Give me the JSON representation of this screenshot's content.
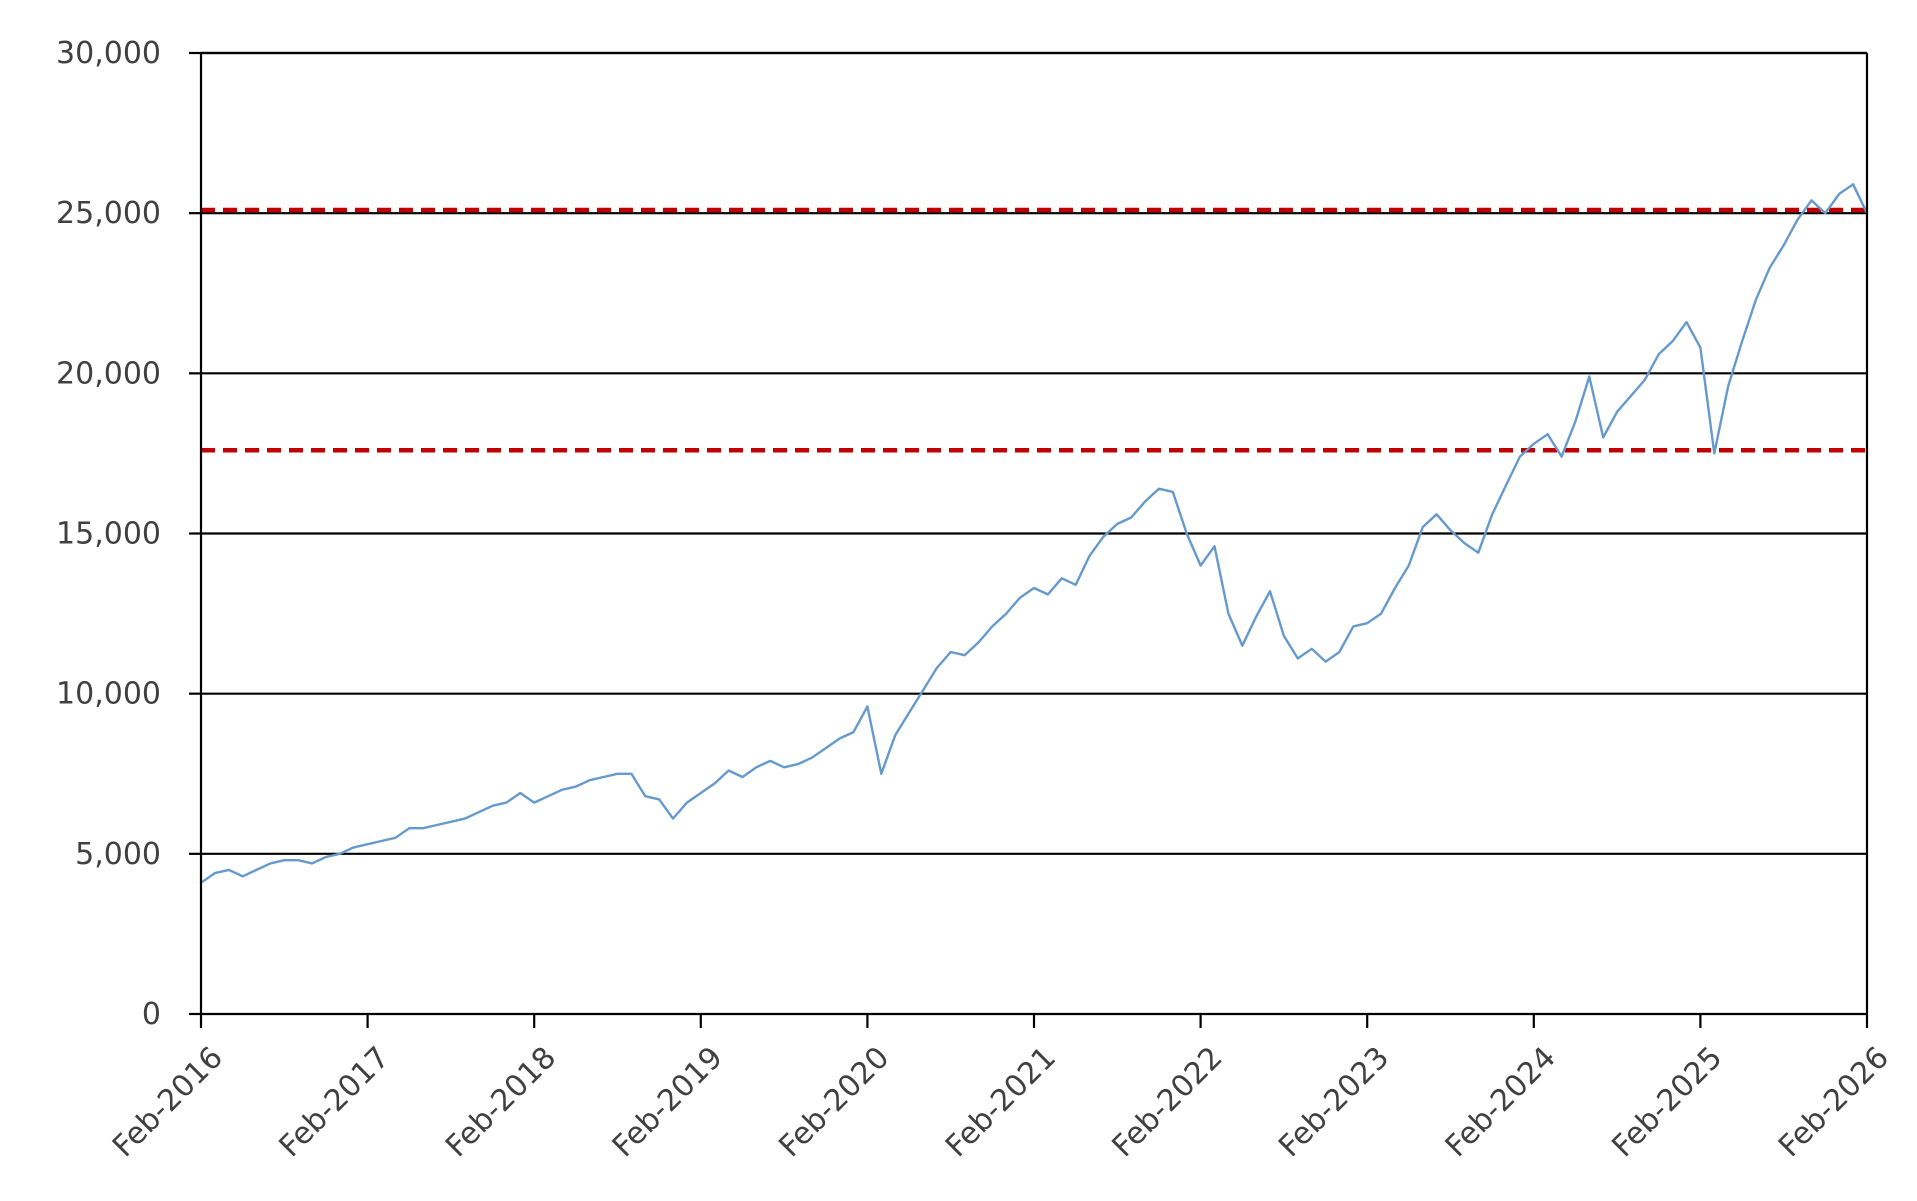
{
  "chart_data": {
    "type": "line",
    "title": "",
    "xlabel": "",
    "ylabel": "",
    "ylim": [
      0,
      30000
    ],
    "xlim": [
      "2016-02",
      "2026-02"
    ],
    "grid": true,
    "legend": "none",
    "y_ticks": [
      0,
      5000,
      10000,
      15000,
      20000,
      25000,
      30000
    ],
    "y_tick_labels": [
      "0",
      "5,000",
      "10,000",
      "15,000",
      "20,000",
      "25,000",
      "30,000"
    ],
    "x_ticks": [
      "2016-02",
      "2017-02",
      "2018-02",
      "2019-02",
      "2020-02",
      "2021-02",
      "2022-02",
      "2023-02",
      "2024-02",
      "2025-02",
      "2026-02"
    ],
    "x_tick_labels": [
      "Feb-2016",
      "Feb-2017",
      "Feb-2018",
      "Feb-2019",
      "Feb-2020",
      "Feb-2021",
      "Feb-2022",
      "Feb-2023",
      "Feb-2024",
      "Feb-2025",
      "Feb-2026"
    ],
    "colors": {
      "series": "#6699CC",
      "reference": "#C00000",
      "grid": "#000000",
      "text": "#404040"
    },
    "reference_lines": [
      {
        "y": 25100,
        "style": "dashed"
      },
      {
        "y": 17600,
        "style": "dashed"
      }
    ],
    "series": [
      {
        "x": [
          "2016-02",
          "2016-03",
          "2016-04",
          "2016-05",
          "2016-06",
          "2016-07",
          "2016-08",
          "2016-09",
          "2016-10",
          "2016-11",
          "2016-12",
          "2017-01",
          "2017-02",
          "2017-03",
          "2017-04",
          "2017-05",
          "2017-06",
          "2017-07",
          "2017-08",
          "2017-09",
          "2017-10",
          "2017-11",
          "2017-12",
          "2018-01",
          "2018-02",
          "2018-03",
          "2018-04",
          "2018-05",
          "2018-06",
          "2018-07",
          "2018-08",
          "2018-09",
          "2018-10",
          "2018-11",
          "2018-12",
          "2019-01",
          "2019-02",
          "2019-03",
          "2019-04",
          "2019-05",
          "2019-06",
          "2019-07",
          "2019-08",
          "2019-09",
          "2019-10",
          "2019-11",
          "2019-12",
          "2020-01",
          "2020-02",
          "2020-03",
          "2020-04",
          "2020-05",
          "2020-06",
          "2020-07",
          "2020-08",
          "2020-09",
          "2020-10",
          "2020-11",
          "2020-12",
          "2021-01",
          "2021-02",
          "2021-03",
          "2021-04",
          "2021-05",
          "2021-06",
          "2021-07",
          "2021-08",
          "2021-09",
          "2021-10",
          "2021-11",
          "2021-12",
          "2022-01",
          "2022-02",
          "2022-03",
          "2022-04",
          "2022-05",
          "2022-06",
          "2022-07",
          "2022-08",
          "2022-09",
          "2022-10",
          "2022-11",
          "2022-12",
          "2023-01",
          "2023-02",
          "2023-03",
          "2023-04",
          "2023-05",
          "2023-06",
          "2023-07",
          "2023-08",
          "2023-09",
          "2023-10",
          "2023-11",
          "2023-12",
          "2024-01",
          "2024-02",
          "2024-03",
          "2024-04",
          "2024-05",
          "2024-06",
          "2024-07",
          "2024-08",
          "2024-09",
          "2024-10",
          "2024-11",
          "2024-12",
          "2025-01",
          "2025-02",
          "2025-03",
          "2025-04",
          "2025-05",
          "2025-06",
          "2025-07",
          "2025-08",
          "2025-09",
          "2025-10",
          "2025-11",
          "2025-12",
          "2026-01",
          "2026-02"
        ],
        "values": [
          4100,
          4400,
          4500,
          4300,
          4500,
          4700,
          4800,
          4800,
          4700,
          4900,
          5000,
          5200,
          5300,
          5400,
          5500,
          5800,
          5800,
          5900,
          6000,
          6100,
          6300,
          6500,
          6600,
          6900,
          6600,
          6800,
          7000,
          7100,
          7300,
          7400,
          7500,
          7500,
          6800,
          6700,
          6100,
          6600,
          6900,
          7200,
          7600,
          7400,
          7700,
          7900,
          7700,
          7800,
          8000,
          8300,
          8600,
          8800,
          9600,
          7500,
          8700,
          9400,
          10100,
          10800,
          11300,
          11200,
          11600,
          12100,
          12500,
          13000,
          13300,
          13100,
          13600,
          13400,
          14300,
          14900,
          15300,
          15500,
          16000,
          16400,
          16300,
          15000,
          14000,
          14600,
          12500,
          11500,
          12400,
          13200,
          11800,
          11100,
          11400,
          11000,
          11300,
          12100,
          12200,
          12500,
          13300,
          14000,
          15200,
          15600,
          15100,
          14700,
          14400,
          15600,
          16500,
          17400,
          17800,
          18100,
          17400,
          18500,
          19900,
          18000,
          18800,
          19300,
          19800,
          20600,
          21000,
          21600,
          20800,
          17500,
          19600,
          21000,
          22300,
          23300,
          24000,
          24800,
          25400,
          25000,
          25600,
          25900,
          25000
        ]
      }
    ]
  }
}
